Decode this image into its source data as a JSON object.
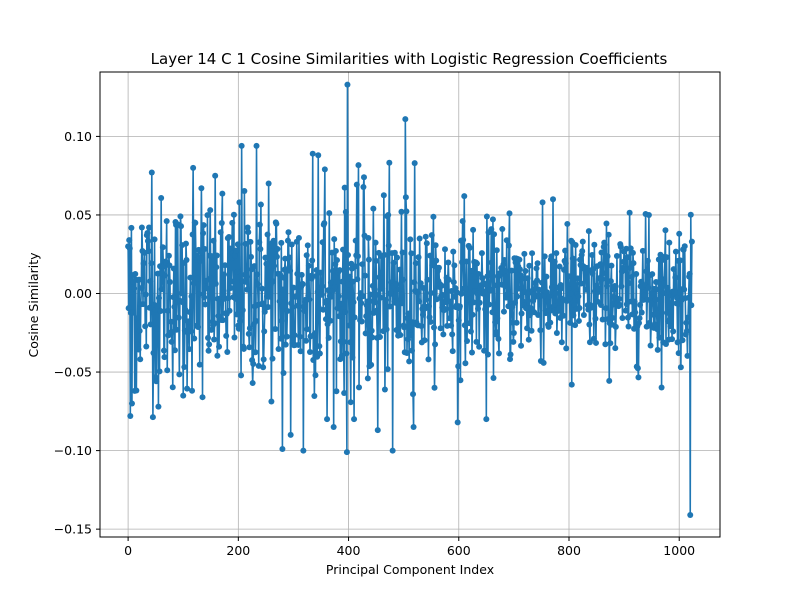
{
  "chart_data": {
    "type": "line",
    "title": "Layer 14 C 1 Cosine Similarities with Logistic Regression Coefficients",
    "xlabel": "Principal Component Index",
    "ylabel": "Cosine Similarity",
    "xlim": [
      -51,
      1074
    ],
    "ylim": [
      -0.155,
      0.141
    ],
    "xticks": [
      0,
      200,
      400,
      600,
      800,
      1000
    ],
    "xtick_labels": [
      "0",
      "200",
      "400",
      "600",
      "800",
      "1000"
    ],
    "yticks": [
      -0.15,
      -0.1,
      -0.05,
      0.0,
      0.05,
      0.1
    ],
    "ytick_labels": [
      "−0.15",
      "−0.10",
      "−0.05",
      "0.00",
      "0.05",
      "0.10"
    ],
    "grid": true,
    "marker": "circle",
    "color": "#1f77b4",
    "n_points": 1024,
    "series": [
      {
        "highlighted_points": [
          {
            "x": 0,
            "y": 0.03
          },
          {
            "x": 2,
            "y": 0.034
          },
          {
            "x": 4,
            "y": -0.078
          },
          {
            "x": 7,
            "y": -0.07
          },
          {
            "x": 12,
            "y": -0.062
          },
          {
            "x": 25,
            "y": 0.042
          },
          {
            "x": 38,
            "y": 0.042
          },
          {
            "x": 43,
            "y": 0.077
          },
          {
            "x": 55,
            "y": -0.072
          },
          {
            "x": 100,
            "y": -0.065
          },
          {
            "x": 118,
            "y": 0.08
          },
          {
            "x": 133,
            "y": 0.067
          },
          {
            "x": 135,
            "y": -0.066
          },
          {
            "x": 206,
            "y": 0.094
          },
          {
            "x": 233,
            "y": 0.094
          },
          {
            "x": 255,
            "y": 0.07
          },
          {
            "x": 280,
            "y": -0.099
          },
          {
            "x": 295,
            "y": -0.09
          },
          {
            "x": 318,
            "y": -0.1
          },
          {
            "x": 335,
            "y": 0.089
          },
          {
            "x": 345,
            "y": 0.088
          },
          {
            "x": 357,
            "y": 0.079
          },
          {
            "x": 361,
            "y": -0.08
          },
          {
            "x": 397,
            "y": -0.101
          },
          {
            "x": 398,
            "y": 0.133
          },
          {
            "x": 410,
            "y": -0.08
          },
          {
            "x": 428,
            "y": 0.074
          },
          {
            "x": 453,
            "y": -0.087
          },
          {
            "x": 480,
            "y": -0.1
          },
          {
            "x": 503,
            "y": 0.111
          },
          {
            "x": 520,
            "y": 0.083
          },
          {
            "x": 598,
            "y": -0.082
          },
          {
            "x": 610,
            "y": 0.062
          },
          {
            "x": 650,
            "y": -0.08
          },
          {
            "x": 692,
            "y": 0.051
          },
          {
            "x": 752,
            "y": 0.058
          },
          {
            "x": 805,
            "y": -0.058
          },
          {
            "x": 945,
            "y": 0.05
          },
          {
            "x": 1000,
            "y": 0.038
          },
          {
            "x": 1020,
            "y": -0.141
          },
          {
            "x": 1023,
            "y": 0.033
          }
        ]
      }
    ]
  }
}
